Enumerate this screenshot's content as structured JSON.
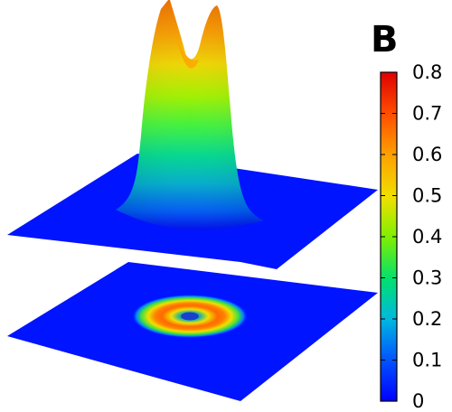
{
  "panel_label": "B",
  "colors": {
    "background": "#ffffff",
    "plane": "#0014ff",
    "colormap": [
      "#0000ff",
      "#0080ff",
      "#00c0c0",
      "#00e060",
      "#80f000",
      "#e0f000",
      "#ffc000",
      "#ff7000",
      "#ff2000",
      "#e00000"
    ]
  },
  "chart_data": {
    "type": "surface3d",
    "title": "",
    "description_type": "3D surface plot with projected 2D colormap on lower plane",
    "surface": {
      "shape": "ring-shaped (doughnut) peak, two maxima visible in side view with a dip at the center",
      "peak_value": 0.75,
      "center_dip_value": 0.6,
      "baseline_value": 0.0
    },
    "projection": {
      "shape": "annulus",
      "peak_value": 0.75,
      "center_value": 0.2
    },
    "colorbar": {
      "min": 0,
      "max": 0.8,
      "ticks": [
        "0",
        "0.1",
        "0.2",
        "0.3",
        "0.4",
        "0.5",
        "0.6",
        "0.7",
        "0.8"
      ],
      "colormap": "jet"
    }
  }
}
